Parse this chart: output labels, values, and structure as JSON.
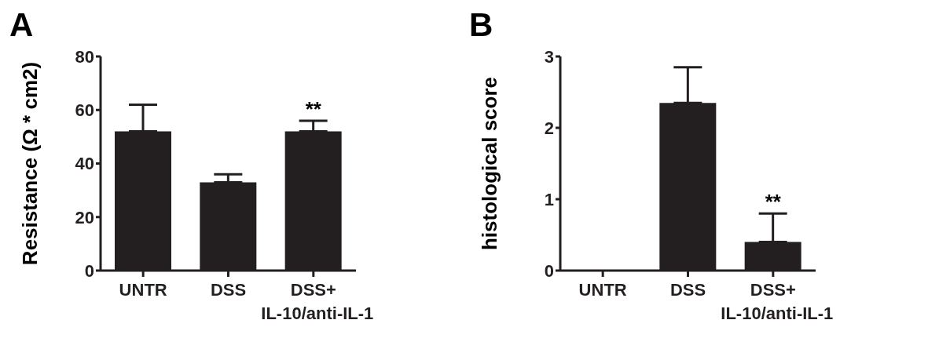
{
  "chart_data": [
    {
      "type": "bar",
      "title": "A",
      "ylabel": "Resistance (Ω * cm2)",
      "categories": [
        "UNTR",
        "DSS",
        "DSS+\nIL-10/anti-IL-1"
      ],
      "values": [
        52,
        33,
        52
      ],
      "errors": [
        [
          52,
          62
        ],
        [
          33,
          36
        ],
        [
          52,
          56
        ]
      ],
      "color": "#231f20",
      "ylim": [
        0,
        80
      ],
      "yticks": [
        0,
        20,
        40,
        60,
        80
      ],
      "annotations": [
        {
          "text": "**",
          "x": "DSS+\nIL-10/anti-IL-1",
          "y": 56
        }
      ]
    },
    {
      "type": "bar",
      "title": "B",
      "ylabel": "histological score",
      "categories": [
        "UNTR",
        "DSS",
        "DSS+\nIL-10/anti-IL-1"
      ],
      "values": [
        0,
        2.35,
        0.4
      ],
      "errors": [
        null,
        [
          2.35,
          2.85
        ],
        [
          0.4,
          0.8
        ]
      ],
      "color": "#231f20",
      "ylim": [
        0,
        3
      ],
      "yticks": [
        0,
        1,
        2,
        3
      ],
      "annotations": [
        {
          "text": "**",
          "x": "DSS+\nIL-10/anti-IL-1",
          "y": 0.8
        }
      ]
    }
  ]
}
